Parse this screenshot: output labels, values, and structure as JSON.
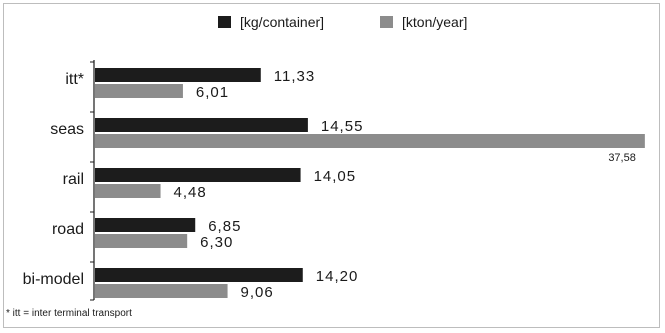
{
  "chart_data": {
    "type": "bar",
    "orientation": "horizontal",
    "categories": [
      "itt*",
      "seas",
      "rail",
      "road",
      "bi-model"
    ],
    "series": [
      {
        "name": "[kg/container]",
        "color": "#1c1c1c",
        "values": [
          11.33,
          14.55,
          14.05,
          6.85,
          14.2
        ],
        "labels": [
          "11,33",
          "14,55",
          "14,05",
          "6,85",
          "14,20"
        ]
      },
      {
        "name": "[kton/year]",
        "color": "#8c8c8c",
        "values": [
          6.01,
          37.58,
          4.48,
          6.3,
          9.06
        ],
        "labels": [
          "6,01",
          "37,58",
          "4,48",
          "6,30",
          "9,06"
        ]
      }
    ],
    "xlim": [
      0,
      38
    ],
    "legend_position": "top",
    "grid": false
  },
  "footnote": "* itt = inter terminal transport"
}
